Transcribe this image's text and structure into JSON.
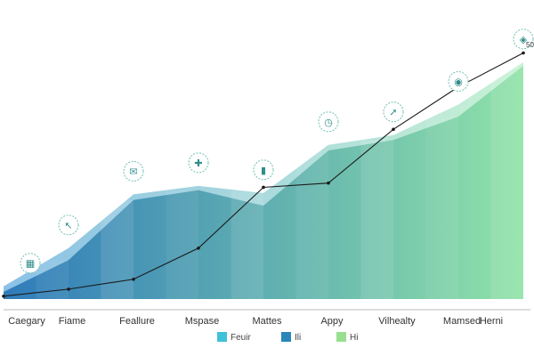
{
  "chart_data": {
    "type": "area",
    "categories": [
      "Caegary",
      "Fiame",
      "Feallure",
      "Mspase",
      "Mattes",
      "Appy",
      "Vilhealty",
      "Mamsed",
      "Herni"
    ],
    "series": [
      {
        "kind": "area",
        "values": [
          18,
          72,
          148,
          160,
          150,
          218,
          232,
          275,
          335
        ],
        "color_left": "#2b8ed1",
        "color_right": "#9be7b0"
      },
      {
        "kind": "area",
        "values": [
          10,
          55,
          140,
          154,
          132,
          210,
          225,
          258,
          330
        ],
        "color_left": "#1f6fb3",
        "color_right": "#86dfa0"
      },
      {
        "kind": "line",
        "values": [
          4,
          14,
          28,
          72,
          158,
          164,
          240,
          300,
          348
        ],
        "color": "#1a1a1a"
      }
    ],
    "end_label": "50",
    "ylim": [
      0,
      360
    ],
    "grid": false,
    "legend": {
      "placement": "bottom-center",
      "items": [
        {
          "label": "Feuir",
          "color": "#3fc1d9"
        },
        {
          "label": "Ili",
          "color": "#2a86b8"
        },
        {
          "label": "Hi",
          "color": "#98e08f"
        }
      ]
    },
    "point_icons": [
      "grid-icon",
      "cursor-icon",
      "chat-icon",
      "puzzle-icon",
      "bar-chart-icon",
      "clock-icon",
      "rocket-icon",
      "camera-icon",
      "shield-icon"
    ]
  }
}
